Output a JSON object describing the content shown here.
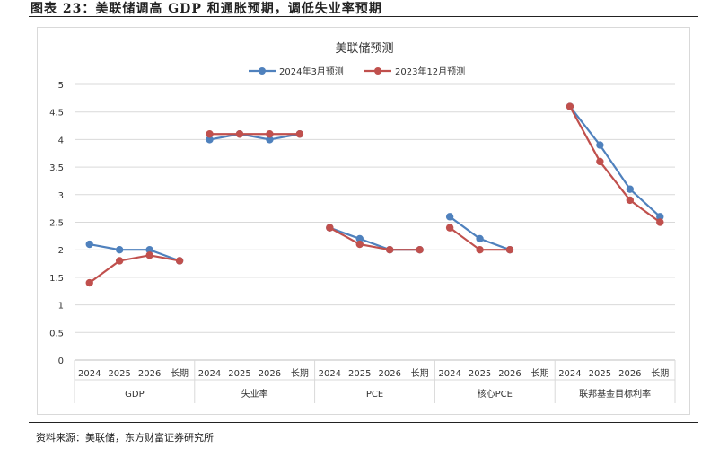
{
  "figure_title": "图表 23：美联储调高 GDP 和通胀预期，调低失业率预期",
  "source_note": "资料来源：美联储，东方财富证券研究所",
  "chart_data": {
    "type": "line",
    "title": "美联储预测",
    "legend_position": "top",
    "ylim": [
      0,
      5
    ],
    "y_ticks": [
      "0",
      "0.5",
      "1",
      "1.5",
      "2",
      "2.5",
      "3",
      "3.5",
      "4",
      "4.5",
      "5"
    ],
    "grid": true,
    "groups": [
      {
        "name": "GDP",
        "categories": [
          "2024",
          "2025",
          "2026",
          "长期"
        ]
      },
      {
        "name": "失业率",
        "categories": [
          "2024",
          "2025",
          "2026",
          "长期"
        ]
      },
      {
        "name": "PCE",
        "categories": [
          "2024",
          "2025",
          "2026",
          "长期"
        ]
      },
      {
        "name": "核心PCE",
        "categories": [
          "2024",
          "2025",
          "2026",
          "长期"
        ]
      },
      {
        "name": "联邦基金目标利率",
        "categories": [
          "2024",
          "2025",
          "2026",
          "长期"
        ]
      }
    ],
    "series": [
      {
        "name": "2024年3月预测",
        "color": "#4f81bd",
        "values": [
          [
            2.1,
            2.0,
            2.0,
            1.8
          ],
          [
            4.0,
            4.1,
            4.0,
            4.1
          ],
          [
            2.4,
            2.2,
            2.0,
            2.0
          ],
          [
            2.6,
            2.2,
            2.0,
            null
          ],
          [
            4.6,
            3.9,
            3.1,
            2.6
          ]
        ]
      },
      {
        "name": "2023年12月预测",
        "color": "#c0504d",
        "values": [
          [
            1.4,
            1.8,
            1.9,
            1.8
          ],
          [
            4.1,
            4.1,
            4.1,
            4.1
          ],
          [
            2.4,
            2.1,
            2.0,
            2.0
          ],
          [
            2.4,
            2.0,
            2.0,
            null
          ],
          [
            4.6,
            3.6,
            2.9,
            2.5
          ]
        ]
      }
    ]
  }
}
